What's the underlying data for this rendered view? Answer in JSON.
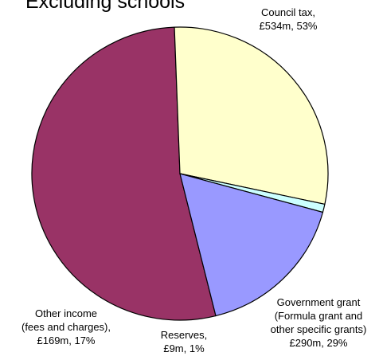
{
  "chart_data": {
    "type": "pie",
    "title": "Excluding schools",
    "slices": [
      {
        "category": "Council tax",
        "amount": "£534m",
        "percent_label": "53%",
        "value": 534,
        "color": "#993366",
        "label_lines": [
          "Council tax,",
          "£534m, 53%"
        ]
      },
      {
        "category": "Government grant (Formula grant and other specific grants)",
        "amount": "£290m",
        "percent_label": "29%",
        "value": 290,
        "color": "#FFFFCC",
        "label_lines": [
          "Government grant",
          "(Formula grant and",
          "other specific grants)",
          "£290m, 29%"
        ]
      },
      {
        "category": "Reserves",
        "amount": "£9m",
        "percent_label": "1%",
        "value": 9,
        "color": "#CCFFFF",
        "label_lines": [
          "Reserves,",
          "£9m, 1%"
        ]
      },
      {
        "category": "Other income (fees and charges)",
        "amount": "£169m",
        "percent_label": "17%",
        "value": 169,
        "color": "#9999FF",
        "label_lines": [
          "Other income",
          "(fees and charges),",
          "£169m, 17%"
        ]
      }
    ]
  }
}
